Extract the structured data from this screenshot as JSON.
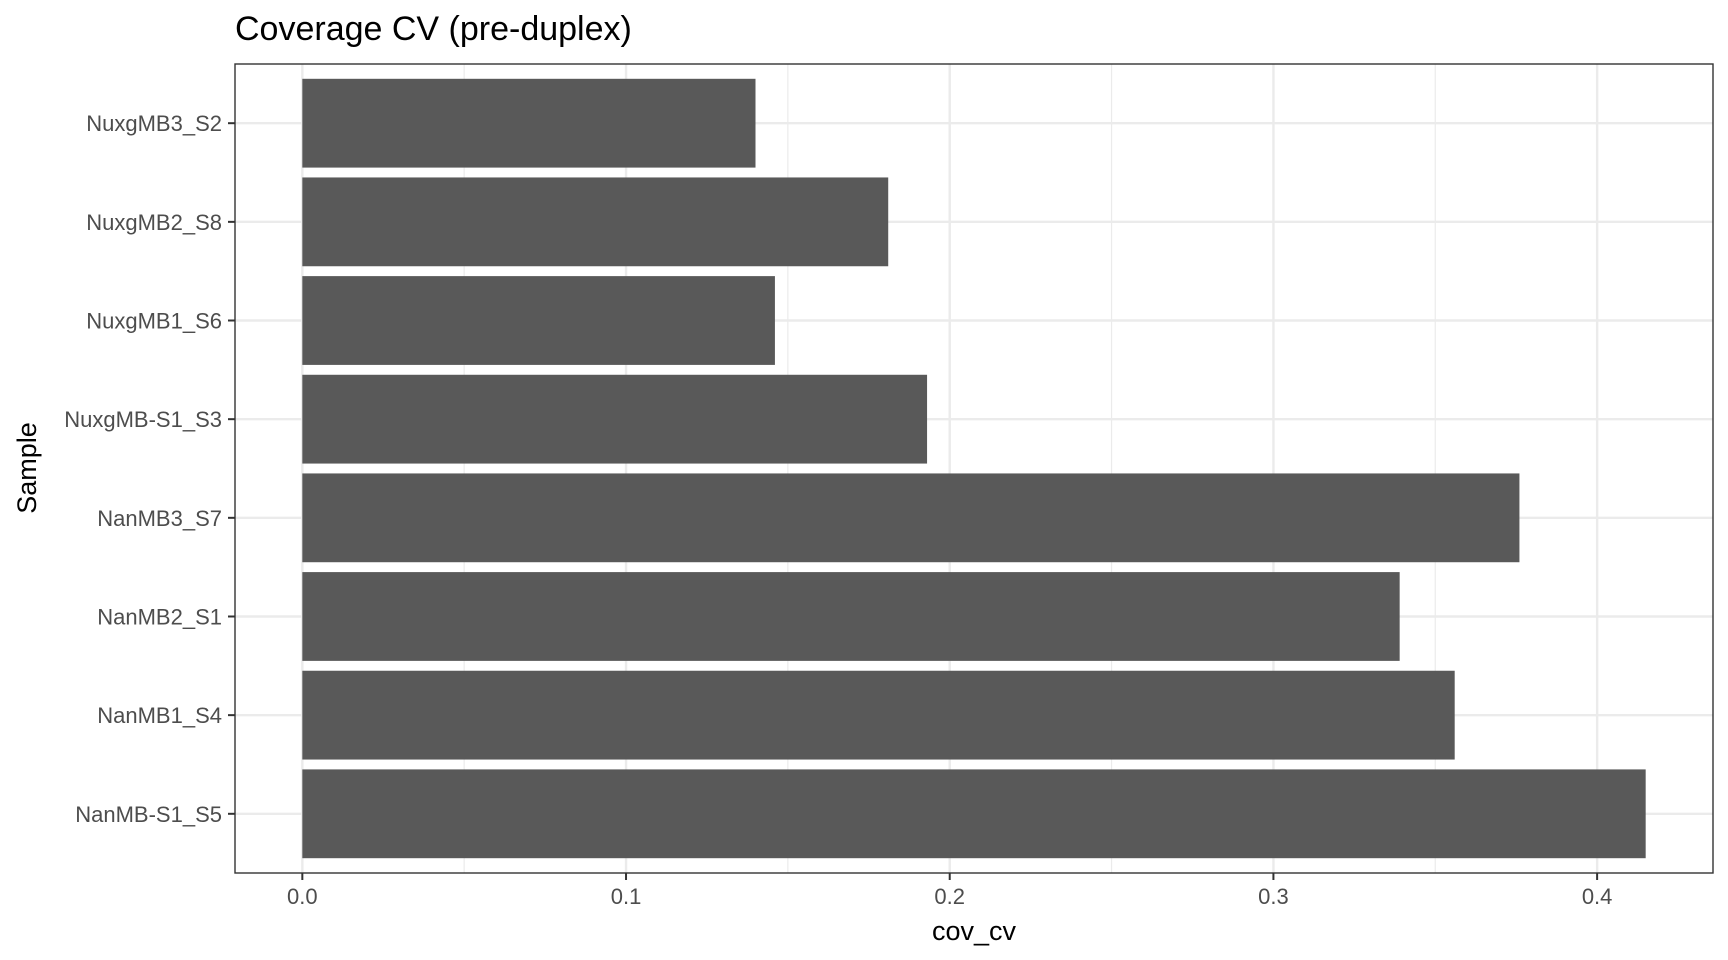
{
  "chart_data": {
    "type": "bar",
    "orientation": "horizontal",
    "title": "Coverage CV (pre-duplex)",
    "xlabel": "cov_cv",
    "ylabel": "Sample",
    "categories": [
      "NuxgMB3_S2",
      "NuxgMB2_S8",
      "NuxgMB1_S6",
      "NuxgMB-S1_S3",
      "NanMB3_S7",
      "NanMB2_S1",
      "NanMB1_S4",
      "NanMB-S1_S5"
    ],
    "values": [
      0.14,
      0.181,
      0.146,
      0.193,
      0.376,
      0.339,
      0.356,
      0.415
    ],
    "xlim": [
      -0.0208,
      0.4358
    ],
    "x_ticks": [
      0,
      0.1,
      0.2,
      0.3,
      0.4
    ],
    "x_tick_labels": [
      "0.0",
      "0.1",
      "0.2",
      "0.3",
      "0.4"
    ],
    "grid": true,
    "legend": "none",
    "bar_color": "#595959",
    "grid_color": "#ebebeb",
    "panel_border_color": "#333333"
  }
}
